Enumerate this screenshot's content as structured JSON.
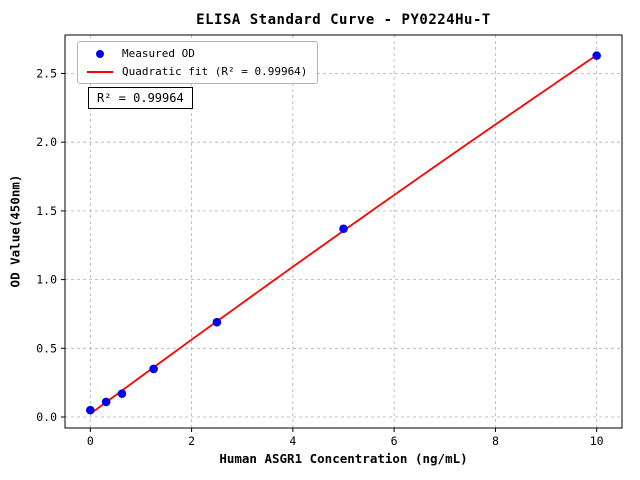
{
  "chart_data": {
    "type": "scatter",
    "title": "ELISA Standard Curve - PY0224Hu-T",
    "xlabel": "Human ASGR1 Concentration (ng/mL)",
    "ylabel": "OD Value(450nm)",
    "xlim": [
      -0.5,
      10.5
    ],
    "ylim": [
      -0.08,
      2.78
    ],
    "grid": true,
    "xticks": {
      "values": [
        0,
        2,
        4,
        6,
        8,
        10
      ],
      "labels": [
        "0",
        "2",
        "4",
        "6",
        "8",
        "10"
      ]
    },
    "yticks": {
      "values": [
        0.0,
        0.5,
        1.0,
        1.5,
        2.0,
        2.5
      ],
      "labels": [
        "0.0",
        "0.5",
        "1.0",
        "1.5",
        "2.0",
        "2.5"
      ]
    },
    "series": [
      {
        "name": "Measured OD",
        "type": "scatter",
        "color": "#0000ee",
        "x": [
          0,
          0.313,
          0.625,
          1.25,
          2.5,
          5,
          10
        ],
        "y": [
          0.05,
          0.11,
          0.17,
          0.35,
          0.69,
          1.37,
          2.63
        ]
      },
      {
        "name": "Quadratic fit (R² = 0.99964)",
        "type": "quadratic_fit",
        "color": "#ff0000",
        "fit_of_series": 0,
        "r_squared": 0.99964,
        "x_range": [
          0,
          10
        ]
      }
    ],
    "legend": {
      "position": "upper-left",
      "entries": [
        {
          "label": "Measured OD",
          "marker": "dot",
          "color": "#0000ee"
        },
        {
          "label": "Quadratic fit (R² = 0.99964)",
          "marker": "line",
          "color": "#ff0000"
        }
      ]
    },
    "annotation": "R² = 0.99964",
    "colors": {
      "grid": "#b0b0b0",
      "frame": "#000000",
      "background": "#ffffff"
    }
  }
}
